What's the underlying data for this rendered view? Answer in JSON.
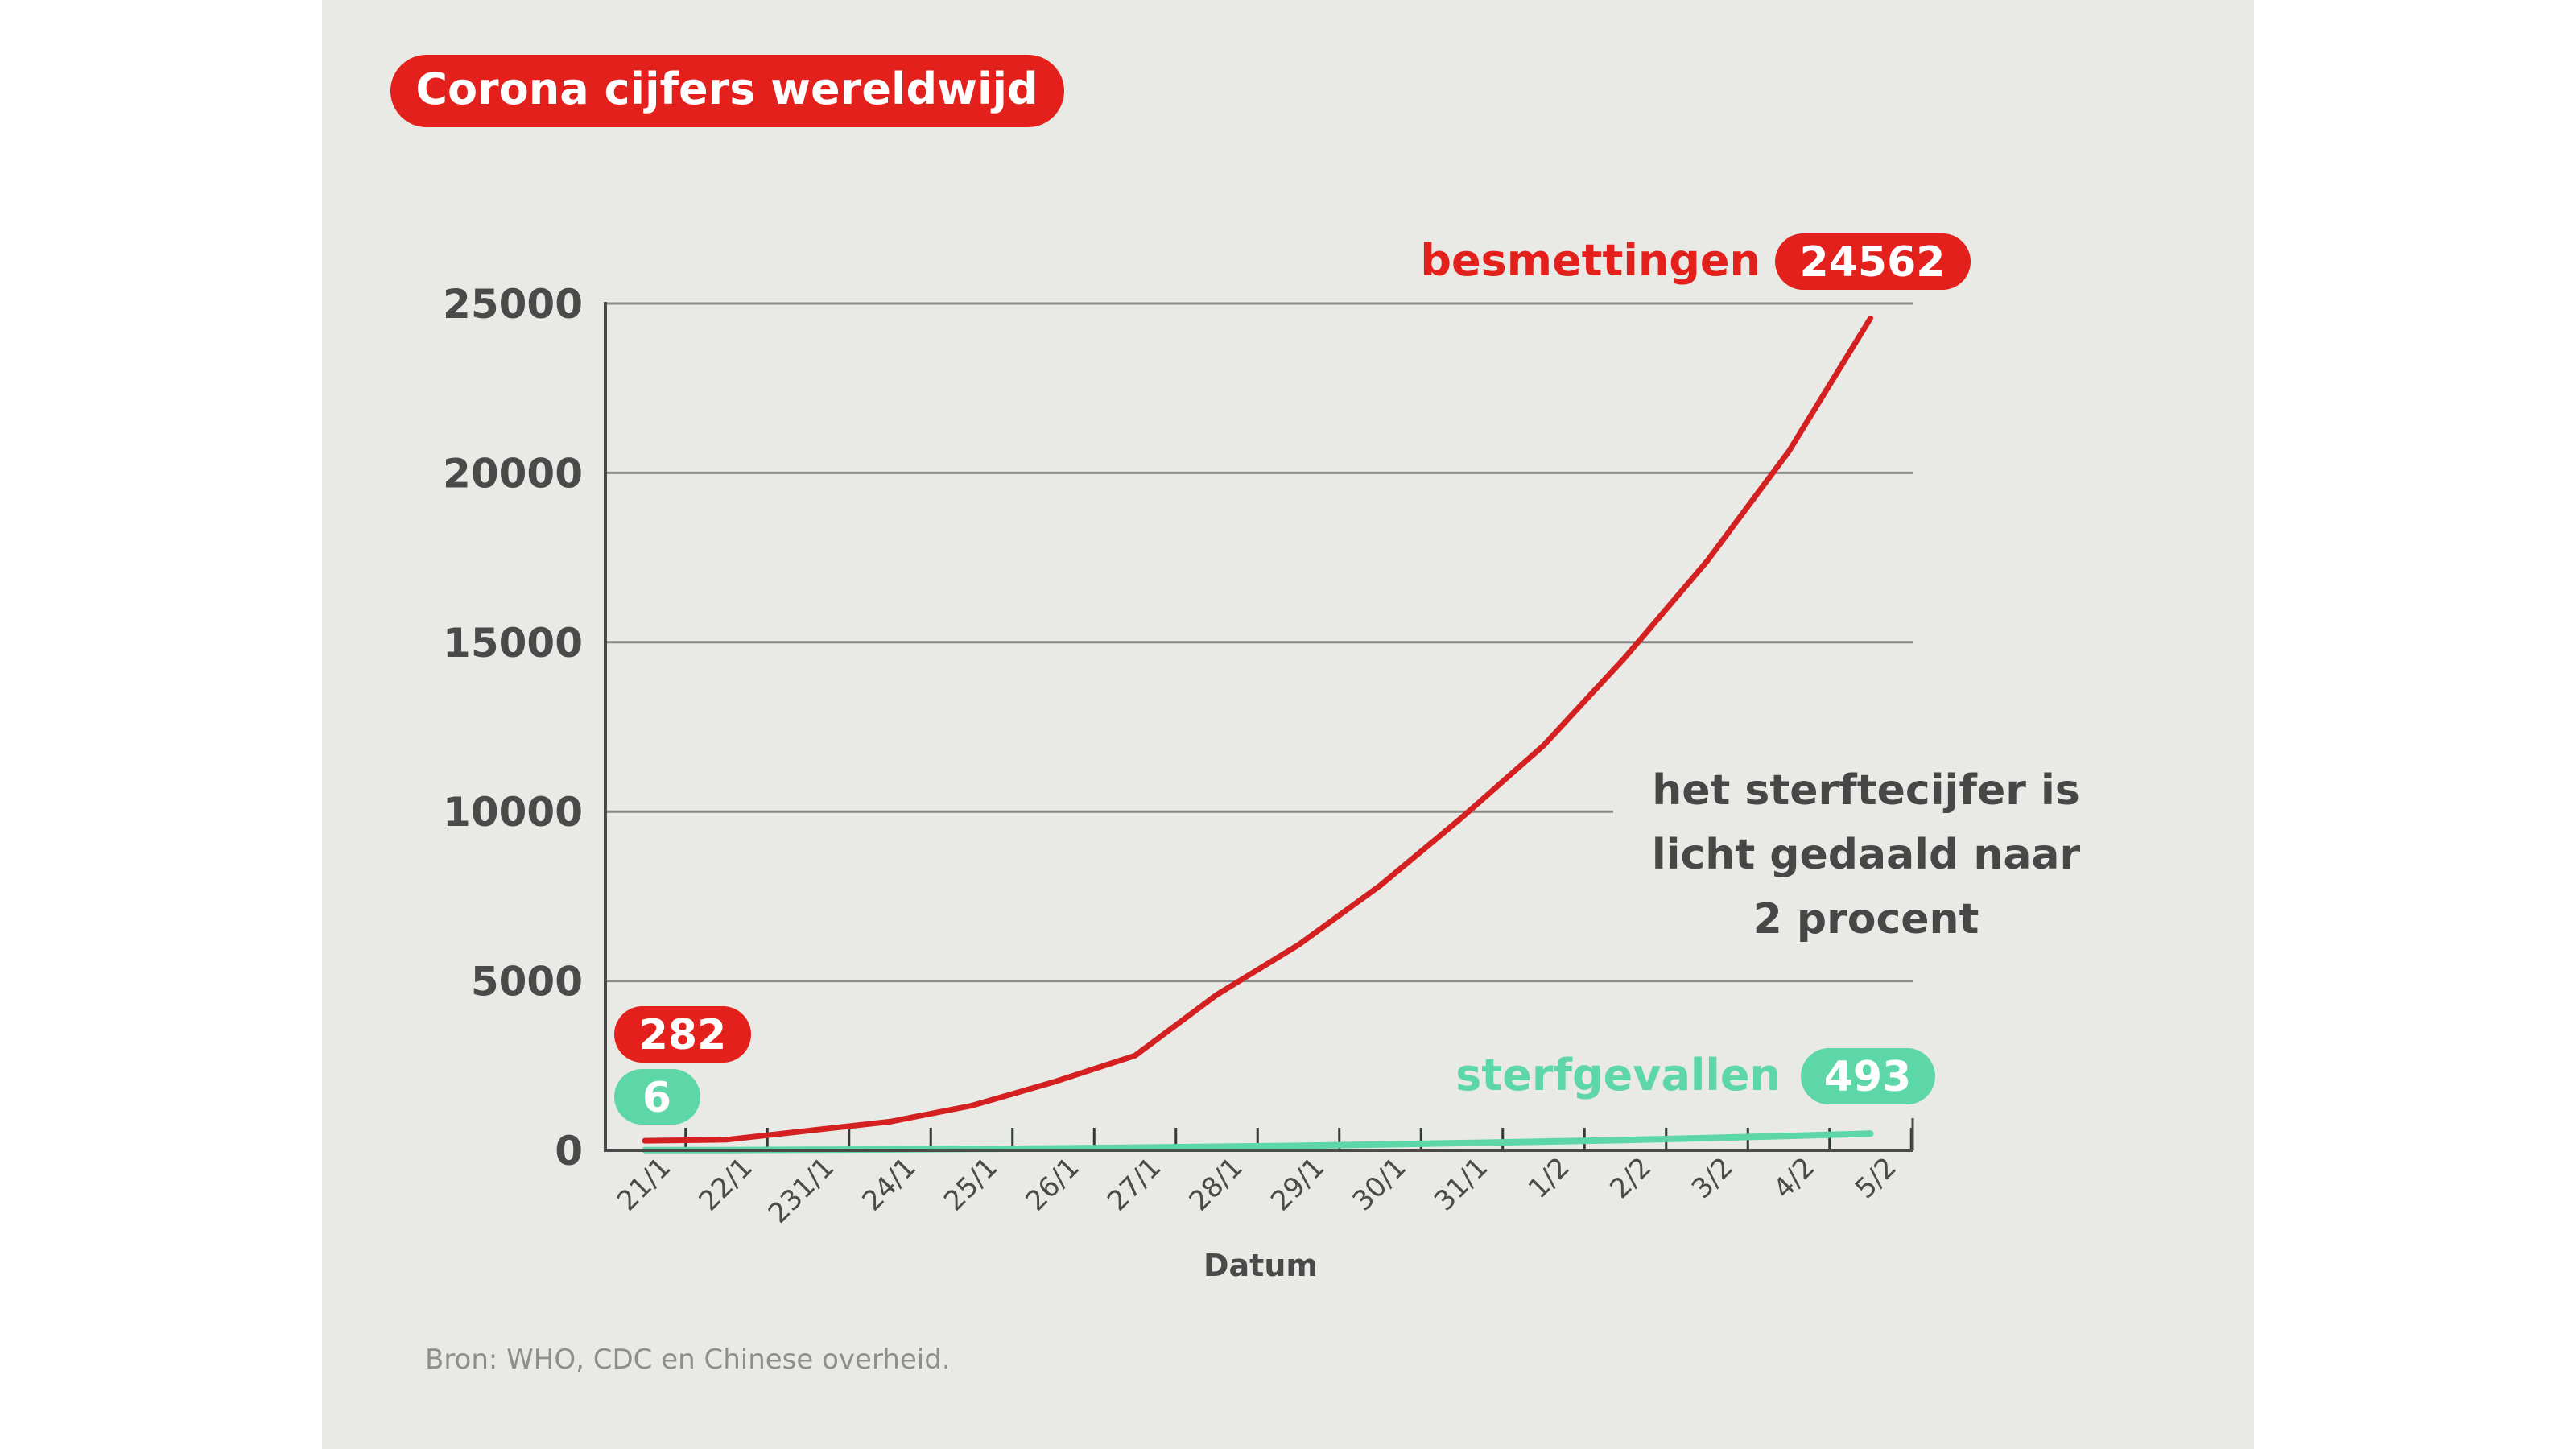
{
  "title": "Corona cijfers wereldwijd",
  "source": "Bron:  WHO, CDC en Chinese overheid.",
  "annotation": [
    "het sterftecijfer is",
    "licht gedaald naar",
    "2 procent"
  ],
  "colors": {
    "background": "#e9e9e5",
    "infections": "#e3201b",
    "infections_line": "#d42020",
    "deaths": "#5dd6a8",
    "axis": "#4a4a4a",
    "grid": "#8a8a8a"
  },
  "chart_data": {
    "type": "line",
    "title": "Corona cijfers wereldwijd",
    "xlabel": "Datum",
    "ylabel": "",
    "ylim": [
      0,
      25000
    ],
    "yticks": [
      0,
      5000,
      10000,
      15000,
      20000,
      25000
    ],
    "ytick_labels": [
      "0",
      "5000",
      "10000",
      "15000",
      "20000",
      "25000"
    ],
    "grid": true,
    "categories": [
      "21/1",
      "22/1",
      "231/1",
      "24/1",
      "25/1",
      "26/1",
      "27/1",
      "28/1",
      "29/1",
      "30/1",
      "31/1",
      "1/2",
      "2/2",
      "3/2",
      "4/2",
      "5/2"
    ],
    "series": [
      {
        "name": "besmettingen",
        "color": "#d42020",
        "values": [
          282,
          314,
          580,
          846,
          1320,
          2014,
          2798,
          4593,
          6065,
          7818,
          9826,
          11953,
          14557,
          17391,
          20630,
          24562
        ],
        "start_label": "282",
        "end_label": "24562"
      },
      {
        "name": "sterfgevallen",
        "color": "#5dd6a8",
        "values": [
          6,
          6,
          17,
          25,
          41,
          56,
          80,
          106,
          132,
          170,
          213,
          259,
          304,
          362,
          426,
          493
        ],
        "start_label": "6",
        "end_label": "493"
      }
    ]
  }
}
